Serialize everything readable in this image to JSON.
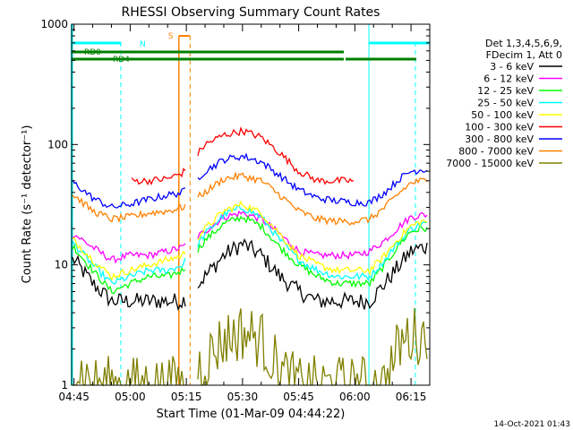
{
  "chart_data": {
    "type": "line",
    "title": "RHESSI Observing Summary Count Rates",
    "xlabel": "Start Time (01-Mar-09 04:44:22)",
    "ylabel": "Count Rate (s⁻¹ detector⁻¹)",
    "x_scale": "time",
    "y_scale": "log",
    "xlim": [
      "04:44:22",
      "06:20:00"
    ],
    "ylim": [
      1,
      1000
    ],
    "x_ticks": [
      "04:45",
      "05:00",
      "05:15",
      "05:30",
      "05:45",
      "06:00",
      "06:15"
    ],
    "y_ticks": [
      {
        "value": 1,
        "label": "1"
      },
      {
        "value": 10,
        "label": "10"
      },
      {
        "value": 100,
        "label": "100"
      },
      {
        "value": 1000,
        "label": "1000"
      }
    ],
    "legend_header": [
      "Det 1,3,4,5,6,9,",
      "FDecim 1, Att 0"
    ],
    "legend_position": "right",
    "timestamp": "14-Oct-2021 01:43",
    "times": [
      "04:45",
      "04:50",
      "04:55",
      "05:00",
      "05:05",
      "05:10",
      "05:14",
      "05:20",
      "05:25",
      "05:30",
      "05:35",
      "05:40",
      "05:45",
      "05:50",
      "05:55",
      "06:00",
      "06:04",
      "06:08",
      "06:12",
      "06:15",
      "06:18"
    ],
    "series": [
      {
        "name": "3 - 6 keV",
        "color": "#000000",
        "values": [
          11,
          7,
          5,
          5,
          5,
          5,
          5,
          8,
          12,
          15,
          12,
          8,
          6,
          5,
          5,
          5,
          5,
          7,
          10,
          13,
          14
        ]
      },
      {
        "name": "6 - 12 keV",
        "color": "#ff00ff",
        "values": [
          18,
          14,
          11,
          12,
          12,
          13,
          14,
          19,
          25,
          27,
          24,
          18,
          13,
          12,
          12,
          12,
          13,
          16,
          21,
          25,
          26
        ]
      },
      {
        "name": "12 - 25 keV",
        "color": "#00ff00",
        "values": [
          14,
          9,
          6,
          7,
          8,
          8,
          9,
          16,
          22,
          25,
          21,
          14,
          10,
          8,
          7,
          7,
          7,
          10,
          15,
          19,
          20
        ]
      },
      {
        "name": "25 - 50 keV",
        "color": "#00ffff",
        "values": [
          15,
          10,
          7,
          8,
          9,
          9,
          10,
          18,
          26,
          30,
          25,
          16,
          11,
          9,
          8,
          8,
          8,
          11,
          16,
          20,
          22
        ]
      },
      {
        "name": "50 - 100 keV",
        "color": "#ffff00",
        "values": [
          16,
          11,
          8,
          9,
          10,
          11,
          12,
          20,
          28,
          32,
          27,
          18,
          12,
          10,
          9,
          9,
          9,
          12,
          17,
          21,
          23
        ]
      },
      {
        "name": "100 - 300 keV",
        "color": "#ff0000",
        "values": [
          0,
          0,
          0,
          50,
          50,
          52,
          58,
          100,
          120,
          130,
          115,
          85,
          60,
          50,
          50,
          50,
          0,
          0,
          0,
          0,
          0
        ]
      },
      {
        "name": "300 - 800 keV",
        "color": "#0000ff",
        "values": [
          48,
          36,
          30,
          32,
          35,
          38,
          40,
          60,
          75,
          80,
          72,
          55,
          42,
          36,
          34,
          33,
          33,
          40,
          52,
          60,
          62
        ]
      },
      {
        "name": "800 - 7000 keV",
        "color": "#ff8000",
        "values": [
          38,
          28,
          24,
          25,
          27,
          28,
          30,
          40,
          52,
          55,
          50,
          38,
          28,
          24,
          23,
          23,
          24,
          30,
          40,
          48,
          50
        ]
      },
      {
        "name": "7000 - 15000 keV",
        "color": "#808000",
        "values": [
          1.5,
          1.0,
          1.0,
          1.0,
          1.0,
          1.0,
          1.0,
          1.6,
          2.4,
          2.8,
          2.4,
          1.3,
          1.0,
          1.0,
          1.0,
          1.0,
          1.0,
          1.0,
          2.2,
          2.6,
          2.6
        ]
      }
    ],
    "annotations": {
      "night": {
        "label": "N",
        "color": "#00ffff",
        "intervals": [
          [
            "04:44:22",
            "04:57:30"
          ],
          [
            "06:03:45",
            "06:20:00"
          ]
        ]
      },
      "saa": {
        "label": "S",
        "color": "#ff8000",
        "interval": [
          "05:13:00",
          "05:16:00"
        ]
      },
      "rd0": {
        "label": "RD0",
        "color": "#008000",
        "intervals": [
          [
            "04:44:22",
            "05:00:00"
          ],
          [
            "05:00:00",
            "06:00:00"
          ],
          [
            "06:04:00",
            "06:20:00"
          ]
        ]
      },
      "rd4": {
        "label": "RD4",
        "color": "#008000",
        "intervals": [
          [
            "04:44:22",
            "06:00:00"
          ],
          [
            "06:01:00",
            "06:20:00"
          ]
        ]
      }
    }
  }
}
